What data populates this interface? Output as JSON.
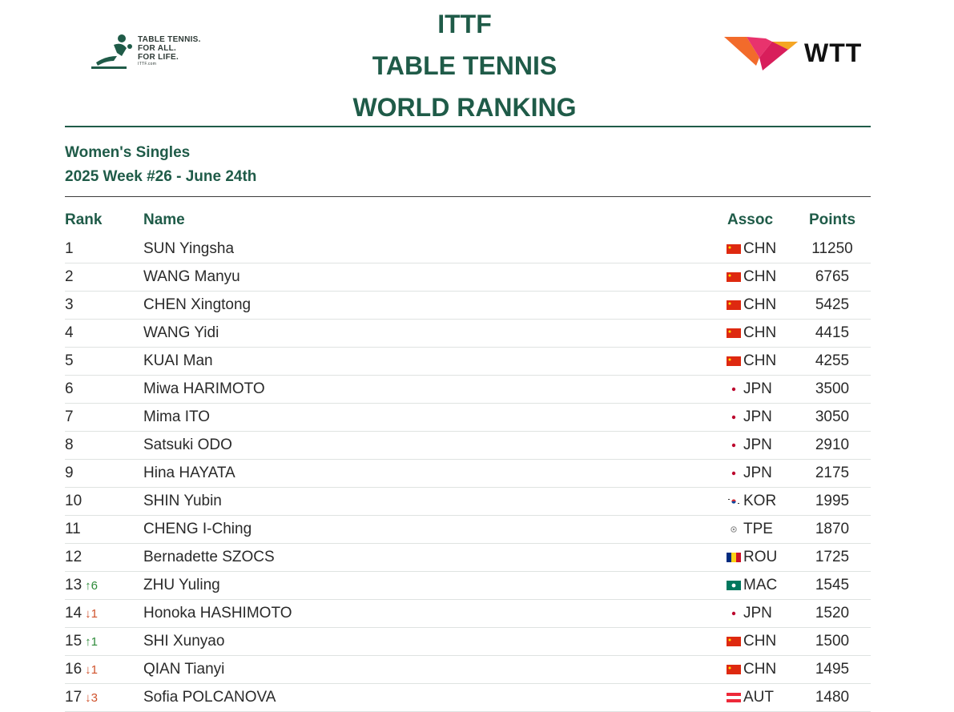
{
  "header": {
    "logo_left_lines": [
      "TABLE TENNIS.",
      "FOR ALL.",
      "FOR LIFE."
    ],
    "logo_left_small": "ITTF.com",
    "title_lines": [
      "ITTF",
      "TABLE TENNIS",
      "WORLD RANKING"
    ],
    "logo_right_text": "WTT"
  },
  "subtitle": {
    "line1": "Women's Singles",
    "line2": "2025 Week #26 - June 24th"
  },
  "columns": {
    "rank": "Rank",
    "name": "Name",
    "assoc": "Assoc",
    "points": "Points"
  },
  "colors": {
    "accent": "#1f5b48",
    "up": "#2e8b3a",
    "down": "#d0522c"
  },
  "rows": [
    {
      "rank": "1",
      "move": "",
      "dir": "",
      "name": "SUN Yingsha",
      "flag": "CHN",
      "assoc": "CHN",
      "points": "11250"
    },
    {
      "rank": "2",
      "move": "",
      "dir": "",
      "name": "WANG Manyu",
      "flag": "CHN",
      "assoc": "CHN",
      "points": "6765"
    },
    {
      "rank": "3",
      "move": "",
      "dir": "",
      "name": "CHEN Xingtong",
      "flag": "CHN",
      "assoc": "CHN",
      "points": "5425"
    },
    {
      "rank": "4",
      "move": "",
      "dir": "",
      "name": "WANG Yidi",
      "flag": "CHN",
      "assoc": "CHN",
      "points": "4415"
    },
    {
      "rank": "5",
      "move": "",
      "dir": "",
      "name": "KUAI Man",
      "flag": "CHN",
      "assoc": "CHN",
      "points": "4255"
    },
    {
      "rank": "6",
      "move": "",
      "dir": "",
      "name": "Miwa HARIMOTO",
      "flag": "JPN",
      "assoc": "JPN",
      "points": "3500"
    },
    {
      "rank": "7",
      "move": "",
      "dir": "",
      "name": "Mima ITO",
      "flag": "JPN",
      "assoc": "JPN",
      "points": "3050"
    },
    {
      "rank": "8",
      "move": "",
      "dir": "",
      "name": "Satsuki ODO",
      "flag": "JPN",
      "assoc": "JPN",
      "points": "2910"
    },
    {
      "rank": "9",
      "move": "",
      "dir": "",
      "name": "Hina HAYATA",
      "flag": "JPN",
      "assoc": "JPN",
      "points": "2175"
    },
    {
      "rank": "10",
      "move": "",
      "dir": "",
      "name": "SHIN Yubin",
      "flag": "KOR",
      "assoc": "KOR",
      "points": "1995"
    },
    {
      "rank": "11",
      "move": "",
      "dir": "",
      "name": "CHENG I-Ching",
      "flag": "TPE",
      "assoc": "TPE",
      "points": "1870"
    },
    {
      "rank": "12",
      "move": "",
      "dir": "",
      "name": "Bernadette SZOCS",
      "flag": "ROU",
      "assoc": "ROU",
      "points": "1725"
    },
    {
      "rank": "13",
      "move": "↑6",
      "dir": "up",
      "name": "ZHU Yuling",
      "flag": "MAC",
      "assoc": "MAC",
      "points": "1545"
    },
    {
      "rank": "14",
      "move": "↓1",
      "dir": "down",
      "name": "Honoka HASHIMOTO",
      "flag": "JPN",
      "assoc": "JPN",
      "points": "1520"
    },
    {
      "rank": "15",
      "move": "↑1",
      "dir": "up",
      "name": "SHI Xunyao",
      "flag": "CHN",
      "assoc": "CHN",
      "points": "1500"
    },
    {
      "rank": "16",
      "move": "↓1",
      "dir": "down",
      "name": "QIAN Tianyi",
      "flag": "CHN",
      "assoc": "CHN",
      "points": "1495"
    },
    {
      "rank": "17",
      "move": "↓3",
      "dir": "down",
      "name": "Sofia POLCANOVA",
      "flag": "AUT",
      "assoc": "AUT",
      "points": "1480"
    }
  ]
}
